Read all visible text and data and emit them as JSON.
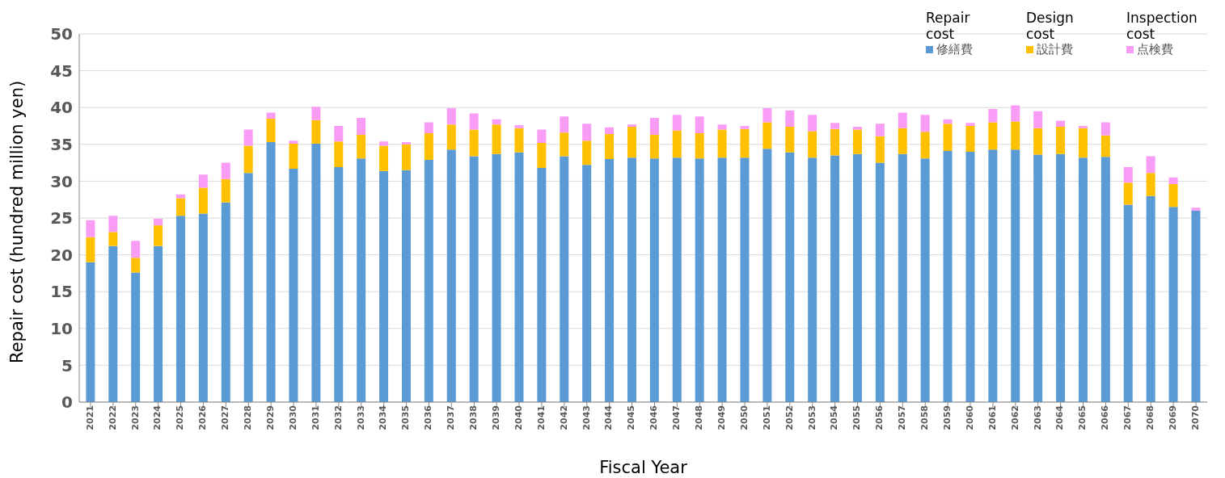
{
  "chart_data": {
    "type": "bar",
    "stacked": true,
    "xlabel": "Fiscal Year",
    "ylabel": "Repair cost (hundred million yen)",
    "categories": [
      "2021",
      "2022",
      "2023",
      "2024",
      "2025",
      "2026",
      "2027",
      "2028",
      "2029",
      "2030",
      "2031",
      "2032",
      "2033",
      "2034",
      "2035",
      "2036",
      "2037",
      "2038",
      "2039",
      "2040",
      "2041",
      "2042",
      "2043",
      "2044",
      "2045",
      "2046",
      "2047",
      "2048",
      "2049",
      "2050",
      "2051",
      "2052",
      "2053",
      "2054",
      "2055",
      "2056",
      "2057",
      "2058",
      "2059",
      "2060",
      "2061",
      "2062",
      "2063",
      "2064",
      "2065",
      "2066",
      "2067",
      "2068",
      "2069",
      "2070"
    ],
    "series": [
      {
        "name": "修繕費",
        "color": "#5b9bd5",
        "values": [
          19.0,
          21.2,
          17.6,
          21.2,
          25.3,
          25.6,
          27.1,
          31.1,
          35.3,
          31.7,
          35.1,
          31.9,
          33.1,
          31.4,
          31.5,
          32.9,
          34.3,
          33.4,
          33.7,
          33.9,
          31.8,
          33.4,
          32.2,
          33.0,
          33.2,
          33.1,
          33.2,
          33.1,
          33.2,
          33.2,
          34.4,
          33.9,
          33.2,
          33.5,
          33.7,
          32.5,
          33.7,
          33.1,
          34.1,
          34.0,
          34.3,
          34.3,
          33.6,
          33.7,
          33.2,
          33.3,
          26.8,
          28.0,
          26.5,
          26.0
        ]
      },
      {
        "name": "設計費",
        "color": "#ffc000",
        "values": [
          3.4,
          1.9,
          2.0,
          2.8,
          2.4,
          3.5,
          3.2,
          3.7,
          3.2,
          3.4,
          3.2,
          3.5,
          3.2,
          3.4,
          3.5,
          3.6,
          3.4,
          3.6,
          4.0,
          3.3,
          3.4,
          3.2,
          3.3,
          3.4,
          4.2,
          3.2,
          3.7,
          3.4,
          3.8,
          3.9,
          3.6,
          3.5,
          3.6,
          3.6,
          3.3,
          3.6,
          3.5,
          3.6,
          3.7,
          3.5,
          3.7,
          3.8,
          3.6,
          3.7,
          4.0,
          2.9,
          3.0,
          3.1,
          3.1,
          0
        ]
      },
      {
        "name": "点検費",
        "color": "#f99cf5",
        "values": [
          2.3,
          2.2,
          2.3,
          0.9,
          0.5,
          1.8,
          2.2,
          2.2,
          0.8,
          0.4,
          1.8,
          2.1,
          2.3,
          0.6,
          0.3,
          1.5,
          2.2,
          2.2,
          0.7,
          0.4,
          1.8,
          2.2,
          2.3,
          0.9,
          0.3,
          2.3,
          2.1,
          2.3,
          0.7,
          0.4,
          1.9,
          2.2,
          2.2,
          0.8,
          0.4,
          1.7,
          2.1,
          2.3,
          0.6,
          0.4,
          1.8,
          2.2,
          2.3,
          0.8,
          0.3,
          1.8,
          2.1,
          2.3,
          0.9,
          0.4
        ]
      }
    ],
    "annotations": [
      "Repair cost",
      "Design cost",
      "Inspection cost"
    ],
    "ylim": [
      0,
      50
    ],
    "yticks": [
      0,
      5,
      10,
      15,
      20,
      25,
      30,
      35,
      40,
      45,
      50
    ],
    "grid": "y",
    "legend": "top right"
  }
}
